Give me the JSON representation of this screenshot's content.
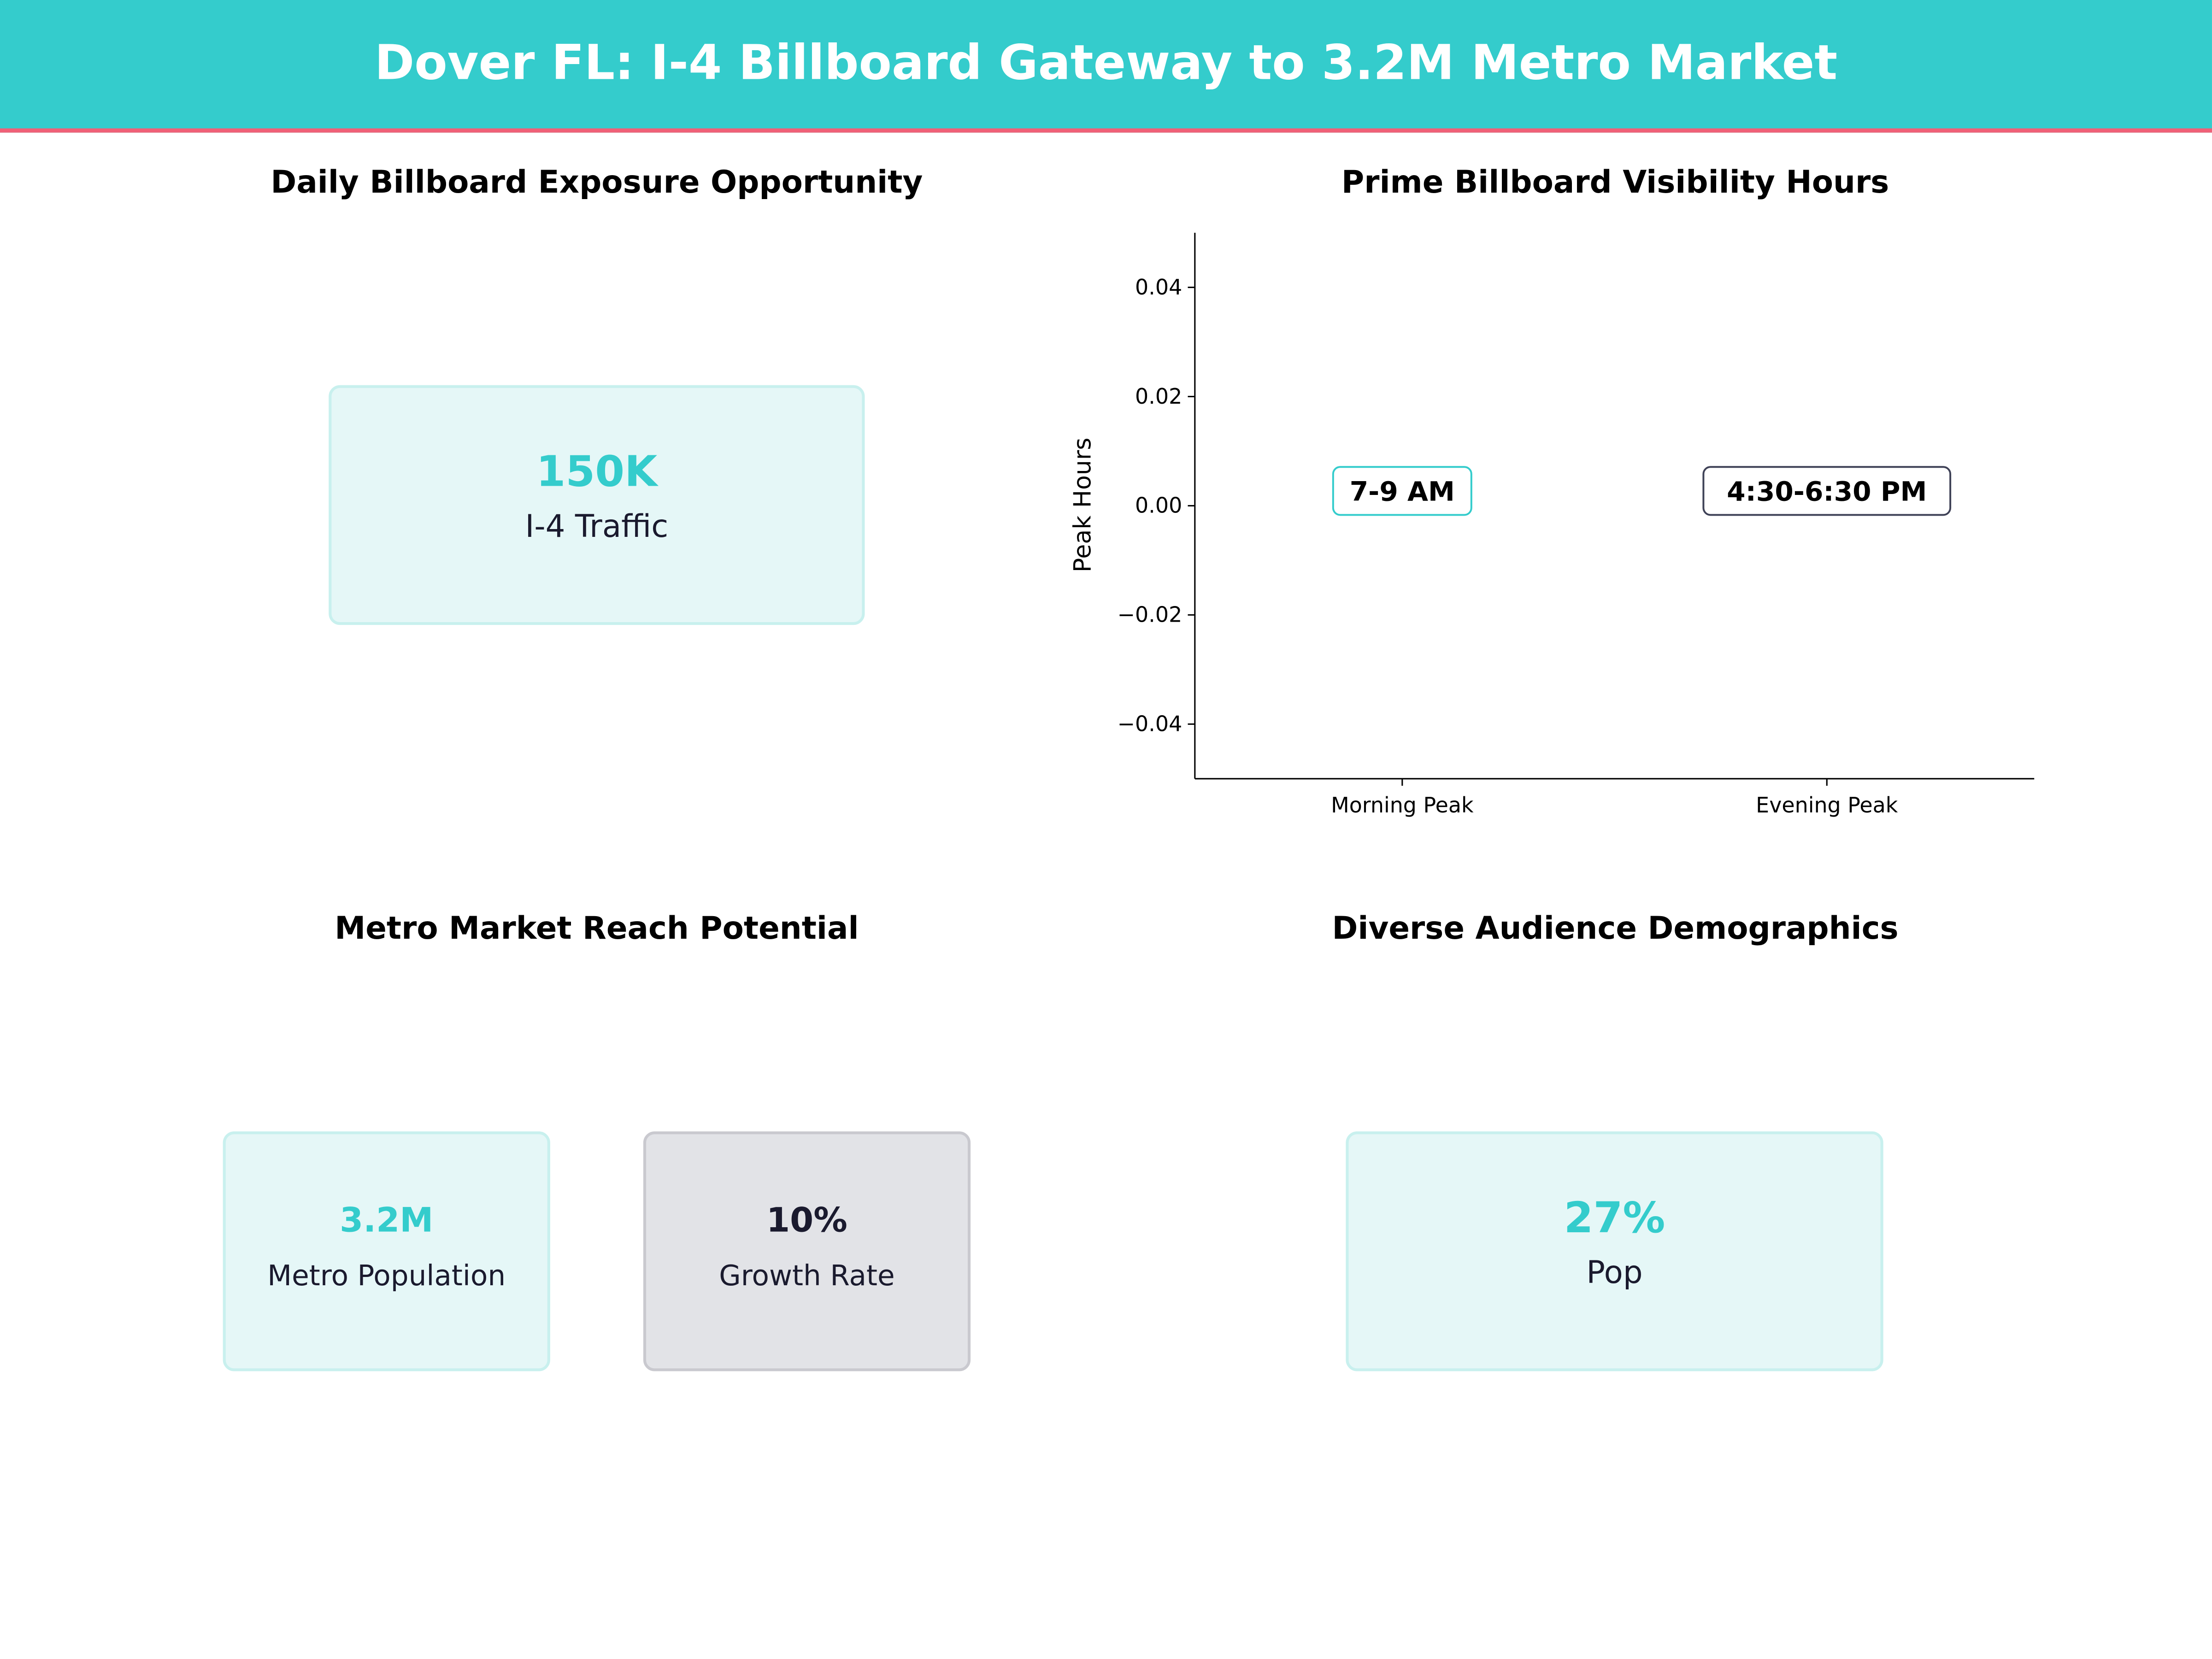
{
  "header": {
    "title": "Dover FL: I-4 Billboard Gateway to 3.2M Metro Market"
  },
  "colors": {
    "primary": "#34CCCC",
    "accent_line": "#F06077",
    "dark": "#1a1a2e",
    "dark_border": "#3f4257"
  },
  "panels": {
    "exposure": {
      "title": "Daily Billboard Exposure Opportunity",
      "value": "150K",
      "label": "I-4 Traffic"
    },
    "visibility": {
      "title": "Prime Billboard Visibility Hours"
    },
    "reach": {
      "title": "Metro Market Reach Potential",
      "cards": [
        {
          "value": "3.2M",
          "label": "Metro Population"
        },
        {
          "value": "10%",
          "label": "Growth Rate"
        }
      ]
    },
    "demographics": {
      "title": "Diverse Audience Demographics",
      "value": "27%",
      "label": "Pop"
    }
  },
  "chart_data": {
    "type": "bar",
    "title": "Prime Billboard Visibility Hours",
    "categories": [
      "Morning Peak",
      "Evening Peak"
    ],
    "values": [
      0,
      0
    ],
    "annotations": [
      "7-9 AM",
      "4:30-6:30 PM"
    ],
    "ylabel": "Peak Hours",
    "xlabel": "",
    "ylim": [
      -0.05,
      0.05
    ],
    "yticks": [
      "−0.04",
      "−0.02",
      "0.00",
      "0.02",
      "0.04"
    ],
    "grid": false
  }
}
